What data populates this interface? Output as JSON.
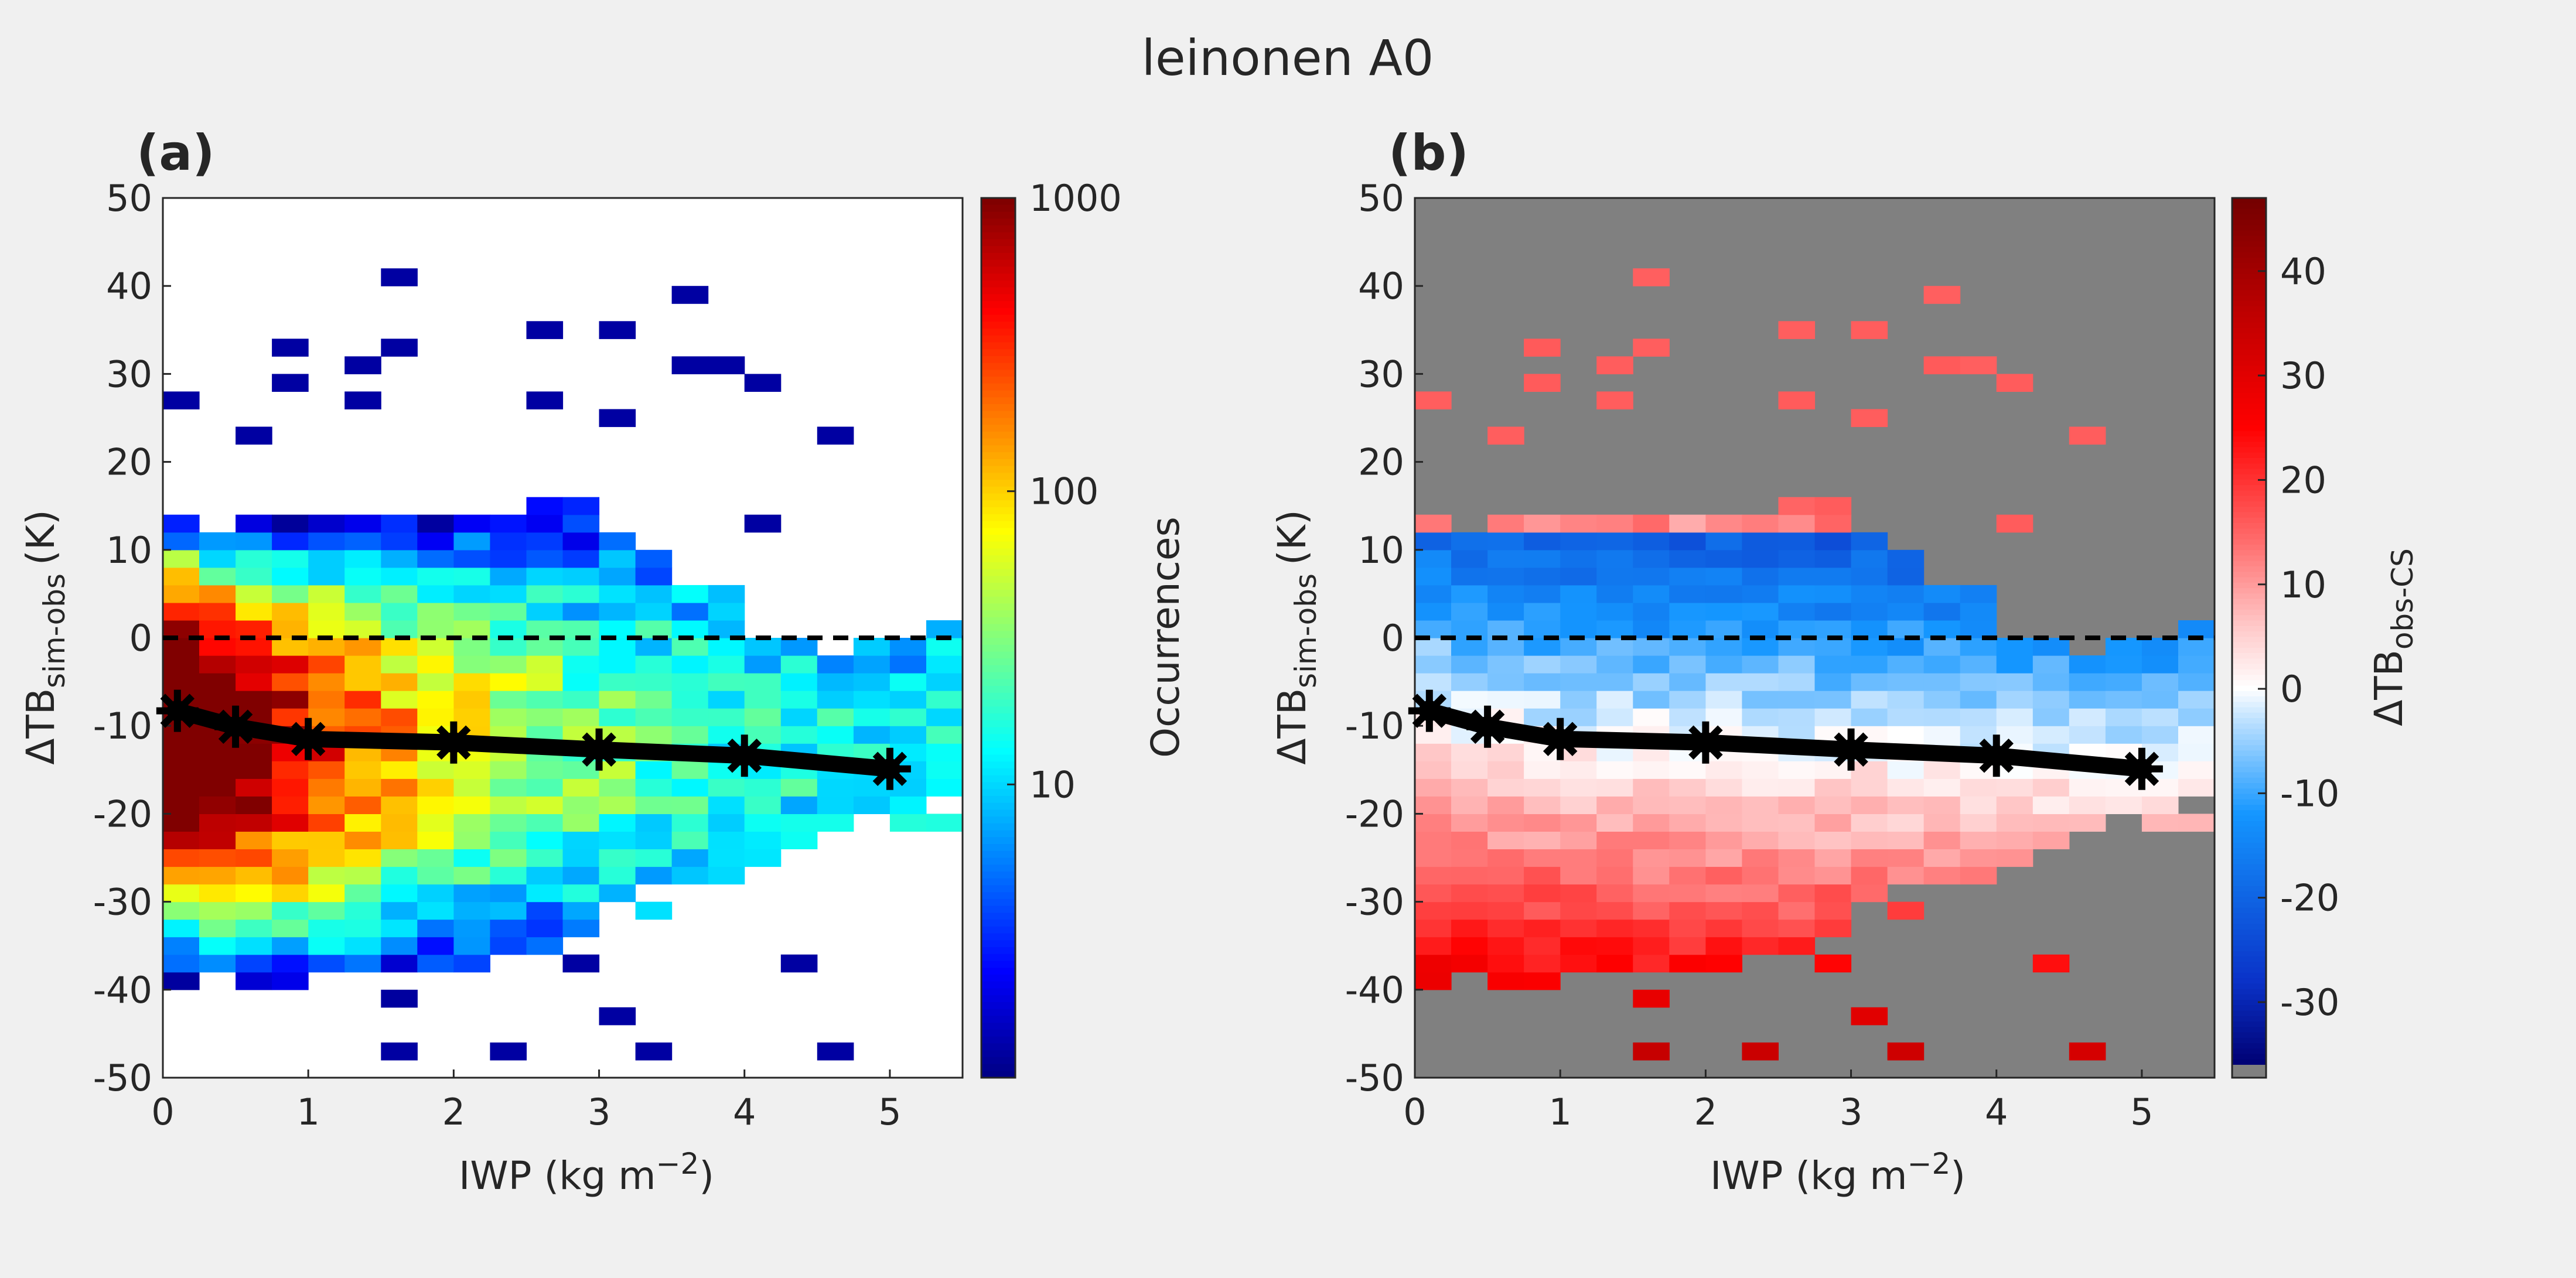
{
  "figure": {
    "title": "leinonen A0",
    "background": "#f0f0f0"
  },
  "panels": [
    {
      "id": "a",
      "label": "(a)",
      "ylabel_main": "ΔTB",
      "ylabel_sub": "sim-obs",
      "ylabel_unit": "(K)",
      "xlabel_main": "IWP (kg m",
      "xlabel_sup": "−2",
      "xlabel_end": ")",
      "colorbar": {
        "label": "Occurrences",
        "tick_labels": [
          "1000",
          "100",
          "10"
        ]
      }
    },
    {
      "id": "b",
      "label": "(b)",
      "ylabel_main": "ΔTB",
      "ylabel_sub": "sim-obs",
      "ylabel_unit": "(K)",
      "xlabel_main": "IWP (kg m",
      "xlabel_sup": "−2",
      "xlabel_end": ")",
      "colorbar": {
        "label_main": "ΔTB",
        "label_sub": "obs-CS",
        "tick_labels": [
          "40",
          "30",
          "20",
          "10",
          "0",
          "-10",
          "-20",
          "-30"
        ]
      }
    }
  ],
  "chart_data": [
    {
      "type": "heatmap",
      "panel": "a",
      "title": "(a)",
      "xlabel": "IWP (kg m−2)",
      "ylabel": "ΔTB sim-obs (K)",
      "xlim": [
        0,
        5.5
      ],
      "ylim": [
        -50,
        50
      ],
      "xticks": [
        0,
        1,
        2,
        3,
        4,
        5
      ],
      "yticks": [
        50,
        40,
        30,
        20,
        10,
        0,
        -10,
        -20,
        -30,
        -40,
        -50
      ],
      "xtick_labels": [
        "0",
        "1",
        "2",
        "3",
        "4",
        "5"
      ],
      "ytick_labels": [
        "50",
        "40",
        "30",
        "20",
        "10",
        "0",
        "-10",
        "-20",
        "-30",
        "-40",
        "-50"
      ],
      "bin_width_x": 0.25,
      "bin_width_y": 2,
      "colorbar": {
        "label": "Occurrences",
        "scale": "log",
        "range": [
          1,
          1000
        ],
        "ticks": [
          10,
          100,
          1000
        ]
      },
      "zero_line": 0,
      "mean_line": {
        "x": [
          0.1,
          0.5,
          1.0,
          2.0,
          3.0,
          4.0,
          5.0
        ],
        "y": [
          -8.3,
          -10.1,
          -11.5,
          -11.9,
          -12.7,
          -13.4,
          -14.9
        ]
      }
    },
    {
      "type": "heatmap",
      "panel": "b",
      "title": "(b)",
      "xlabel": "IWP (kg m−2)",
      "ylabel": "ΔTB sim-obs (K)",
      "xlim": [
        0,
        5.5
      ],
      "ylim": [
        -50,
        50
      ],
      "xticks": [
        0,
        1,
        2,
        3,
        4,
        5
      ],
      "yticks": [
        50,
        40,
        30,
        20,
        10,
        0,
        -10,
        -20,
        -30,
        -40,
        -50
      ],
      "xtick_labels": [
        "0",
        "1",
        "2",
        "3",
        "4",
        "5"
      ],
      "ytick_labels": [
        "50",
        "40",
        "30",
        "20",
        "10",
        "0",
        "-10",
        "-20",
        "-30",
        "-40",
        "-50"
      ],
      "bin_width_x": 0.25,
      "bin_width_y": 2,
      "colorbar": {
        "label": "ΔTB obs-CS",
        "range": [
          -36,
          47
        ],
        "ticks": [
          40,
          30,
          20,
          10,
          0,
          -10,
          -20,
          -30
        ],
        "no_data_color": "#808080"
      },
      "zero_line": 0,
      "mean_line": {
        "x": [
          0.1,
          0.5,
          1.0,
          2.0,
          3.0,
          4.0,
          5.0
        ],
        "y": [
          -8.3,
          -10.1,
          -11.5,
          -11.9,
          -12.7,
          -13.4,
          -14.9
        ]
      }
    }
  ],
  "colors": {
    "figure_bg": "#f0f0f0",
    "axes_bg_a": "#ffffff",
    "axes_bg_b": "#808080",
    "text": "#262626",
    "line": "#000000"
  }
}
